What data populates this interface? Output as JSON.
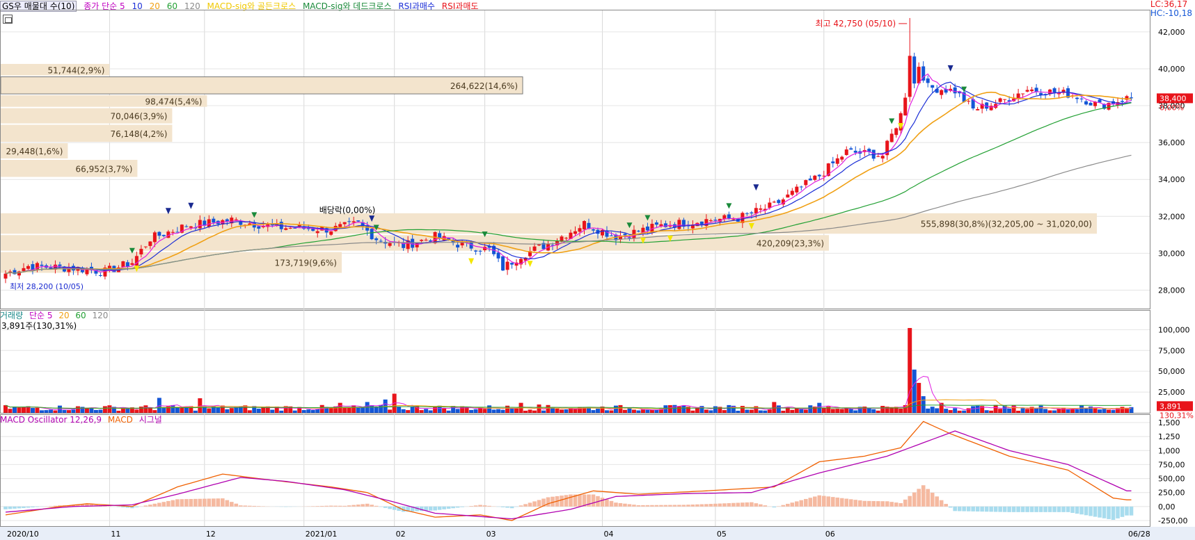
{
  "legend": {
    "title": "GS우 매물대 수(10)",
    "ma_label": "종가 단순 5",
    "ma_10": "10",
    "ma_20": "20",
    "ma_60": "60",
    "ma_120": "120",
    "signal_golden": "MACD-sig와 골든크로스",
    "signal_dead": "MACD-sig와 데드크로스",
    "rsi_buy": "RSI과매수",
    "rsi_sell": "RSI과매도"
  },
  "status": {
    "lc": "LC:36,17",
    "hc": "HC:-10,18"
  },
  "volume_legend": {
    "label": "거래량",
    "ma": "단순 5",
    "p20": "20",
    "p60": "60",
    "p120": "120",
    "info": "3,891주(130,31%)"
  },
  "macd_legend": {
    "osc": "MACD Oscillator 12,26,9",
    "macd": "MACD",
    "signal": "시그널"
  },
  "colors": {
    "up": "#e8141b",
    "down": "#1456d6",
    "ma5": "#e020e0",
    "ma10": "#1b2ed6",
    "ma20": "#f0a014",
    "ma60": "#22a033",
    "ma120": "#8a8a8a",
    "profile": "#f3e4cd"
  },
  "annotations": {
    "high": "최고 42,750 (05/10)",
    "low": "최저 28,200 (10/05)",
    "dividend": "배당락(0,00%)",
    "last_price": "38,400",
    "last_change": "0,00%",
    "vol_last": "3,891",
    "vol_pct": "130,31%"
  },
  "chart_data": [
    {
      "type": "candlestick",
      "title": "GS우 매물대 수(10)",
      "x_ticks": [
        "2020/10",
        "11",
        "12",
        "2021/01",
        "02",
        "03",
        "04",
        "05",
        "06",
        "06/28"
      ],
      "y_ticks": [
        "42,000",
        "40,000",
        "38,000",
        "36,000",
        "34,000",
        "32,000",
        "30,000",
        "28,000"
      ],
      "ylim": [
        27000,
        43200
      ],
      "high": 42750,
      "low": 28200,
      "last": 38400,
      "volume_profile": [
        {
          "label": "51,744(2,9%)",
          "pmin": 39600,
          "pmax": 40300
        },
        {
          "label": "264,622(14,6%)",
          "pmin": 38600,
          "pmax": 39600
        },
        {
          "label": "98,474(5,4%)",
          "pmin": 37900,
          "pmax": 38600
        },
        {
          "label": "70,046(3,9%)",
          "pmin": 37000,
          "pmax": 37900
        },
        {
          "label": "76,148(4,2%)",
          "pmin": 36000,
          "pmax": 37000
        },
        {
          "label": "29,448(1,6%)",
          "pmin": 35100,
          "pmax": 36000
        },
        {
          "label": "66,952(3,7%)",
          "pmin": 34100,
          "pmax": 35100
        },
        {
          "label": "555,898(30,8%)(32,205,00 ~ 31,020,00)",
          "pmin": 31020,
          "pmax": 32205
        },
        {
          "label": "420,209(23,3%)",
          "pmin": 30100,
          "pmax": 31020
        },
        {
          "label": "173,719(9,6%)",
          "pmin": 28900,
          "pmax": 30100
        }
      ],
      "trend": [
        {
          "d": 0,
          "c": 28900
        },
        {
          "d": 5,
          "c": 29300
        },
        {
          "d": 15,
          "c": 29200
        },
        {
          "d": 22,
          "c": 29000
        },
        {
          "d": 28,
          "c": 29500
        },
        {
          "d": 32,
          "c": 30800
        },
        {
          "d": 40,
          "c": 31500
        },
        {
          "d": 50,
          "c": 31800
        },
        {
          "d": 60,
          "c": 31400
        },
        {
          "d": 72,
          "c": 31300
        },
        {
          "d": 78,
          "c": 31600
        },
        {
          "d": 82,
          "c": 30800
        },
        {
          "d": 88,
          "c": 30400
        },
        {
          "d": 95,
          "c": 30900
        },
        {
          "d": 100,
          "c": 30500
        },
        {
          "d": 107,
          "c": 30200
        },
        {
          "d": 110,
          "c": 29200
        },
        {
          "d": 114,
          "c": 29900
        },
        {
          "d": 120,
          "c": 30500
        },
        {
          "d": 128,
          "c": 31600
        },
        {
          "d": 135,
          "c": 30900
        },
        {
          "d": 145,
          "c": 31500
        },
        {
          "d": 155,
          "c": 31800
        },
        {
          "d": 162,
          "c": 31900
        },
        {
          "d": 170,
          "c": 32600
        },
        {
          "d": 180,
          "c": 34200
        },
        {
          "d": 186,
          "c": 35500
        },
        {
          "d": 194,
          "c": 35300
        },
        {
          "d": 198,
          "c": 37500
        },
        {
          "d": 201,
          "c": 40800
        },
        {
          "d": 204,
          "c": 39000
        },
        {
          "d": 210,
          "c": 38800
        },
        {
          "d": 214,
          "c": 37800
        },
        {
          "d": 220,
          "c": 38200
        },
        {
          "d": 226,
          "c": 38900
        },
        {
          "d": 236,
          "c": 38600
        },
        {
          "d": 242,
          "c": 38000
        },
        {
          "d": 248,
          "c": 38400
        }
      ]
    },
    {
      "type": "bar",
      "title": "거래량",
      "y_ticks": [
        "100,000",
        "75,000",
        "50,000",
        "25,000"
      ],
      "ylim": [
        0,
        112000
      ],
      "spikes": [
        {
          "d": 34,
          "v": 18000
        },
        {
          "d": 43,
          "v": 17500
        },
        {
          "d": 74,
          "v": 12000
        },
        {
          "d": 80,
          "v": 13000
        },
        {
          "d": 84,
          "v": 16000
        },
        {
          "d": 86,
          "v": 23000
        },
        {
          "d": 114,
          "v": 12000
        },
        {
          "d": 118,
          "v": 10000
        },
        {
          "d": 170,
          "v": 13000
        },
        {
          "d": 180,
          "v": 12000
        },
        {
          "d": 200,
          "v": 102000
        },
        {
          "d": 201,
          "v": 52000
        },
        {
          "d": 202,
          "v": 36000
        },
        {
          "d": 203,
          "v": 20000
        },
        {
          "d": 207,
          "v": 12000
        }
      ]
    },
    {
      "type": "line",
      "title": "MACD Oscillator 12,26,9",
      "series": [
        {
          "name": "MACD",
          "points": [
            {
              "d": 0,
              "v": -150
            },
            {
              "d": 12,
              "v": 0
            },
            {
              "d": 18,
              "v": 50
            },
            {
              "d": 28,
              "v": 0
            },
            {
              "d": 38,
              "v": 350
            },
            {
              "d": 48,
              "v": 580
            },
            {
              "d": 58,
              "v": 480
            },
            {
              "d": 72,
              "v": 350
            },
            {
              "d": 80,
              "v": 250
            },
            {
              "d": 88,
              "v": -60
            },
            {
              "d": 95,
              "v": -190
            },
            {
              "d": 105,
              "v": -150
            },
            {
              "d": 112,
              "v": -250
            },
            {
              "d": 120,
              "v": 50
            },
            {
              "d": 130,
              "v": 280
            },
            {
              "d": 140,
              "v": 220
            },
            {
              "d": 155,
              "v": 280
            },
            {
              "d": 170,
              "v": 350
            },
            {
              "d": 180,
              "v": 800
            },
            {
              "d": 190,
              "v": 900
            },
            {
              "d": 198,
              "v": 1050
            },
            {
              "d": 203,
              "v": 1520
            },
            {
              "d": 209,
              "v": 1300
            },
            {
              "d": 222,
              "v": 900
            },
            {
              "d": 235,
              "v": 650
            },
            {
              "d": 245,
              "v": 150
            },
            {
              "d": 248,
              "v": 120
            }
          ]
        },
        {
          "name": "시그널",
          "points": [
            {
              "d": 0,
              "v": -100
            },
            {
              "d": 15,
              "v": 0
            },
            {
              "d": 28,
              "v": 30
            },
            {
              "d": 38,
              "v": 220
            },
            {
              "d": 52,
              "v": 520
            },
            {
              "d": 62,
              "v": 450
            },
            {
              "d": 75,
              "v": 300
            },
            {
              "d": 85,
              "v": 100
            },
            {
              "d": 95,
              "v": -120
            },
            {
              "d": 112,
              "v": -220
            },
            {
              "d": 125,
              "v": -50
            },
            {
              "d": 135,
              "v": 180
            },
            {
              "d": 150,
              "v": 230
            },
            {
              "d": 165,
              "v": 250
            },
            {
              "d": 180,
              "v": 600
            },
            {
              "d": 195,
              "v": 900
            },
            {
              "d": 210,
              "v": 1350
            },
            {
              "d": 222,
              "v": 1000
            },
            {
              "d": 235,
              "v": 750
            },
            {
              "d": 248,
              "v": 280
            }
          ]
        }
      ],
      "y_ticks": [
        "1,500",
        "1,250",
        "1,000",
        "750,00",
        "500,00",
        "250,00",
        "0,00",
        "-250,00"
      ],
      "ylim": [
        -350,
        1600
      ]
    }
  ]
}
